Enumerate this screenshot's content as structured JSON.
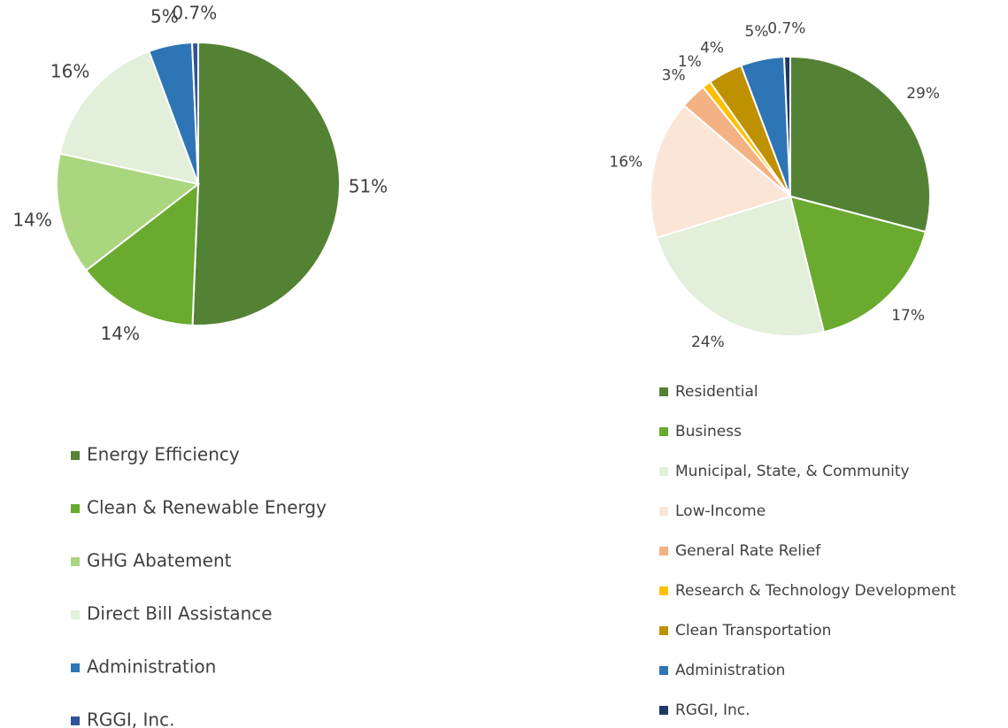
{
  "chart_data": [
    {
      "type": "pie",
      "categories": [
        "Energy Efficiency",
        "Clean & Renewable Energy",
        "GHG Abatement",
        "Direct Bill Assistance",
        "Administration",
        "RGGI, Inc."
      ],
      "values": [
        51,
        14,
        14,
        16,
        5,
        0.7
      ],
      "value_labels": [
        "51%",
        "14%",
        "14%",
        "16%",
        "5%",
        "0.7%"
      ],
      "colors": [
        "#548235",
        "#6aaa2f",
        "#a9d67e",
        "#e2efda",
        "#2e75b6",
        "#2f5597"
      ]
    },
    {
      "type": "pie",
      "categories": [
        "Residential",
        "Business",
        "Municipal, State, & Community",
        "Low-Income",
        "General Rate Relief",
        "Research & Technology Development",
        "Clean Transportation",
        "Administration",
        "RGGI, Inc."
      ],
      "values": [
        29,
        17,
        24,
        16,
        3,
        1,
        4,
        5,
        0.7
      ],
      "value_labels": [
        "29%",
        "17%",
        "24%",
        "16%",
        "3%",
        "1%",
        "4%",
        "5%",
        "0.7%"
      ],
      "colors": [
        "#548235",
        "#6aaa2f",
        "#e2efda",
        "#fbe5d6",
        "#f4b183",
        "#ffc000",
        "#bf9000",
        "#2e75b6",
        "#1f3864"
      ]
    }
  ]
}
